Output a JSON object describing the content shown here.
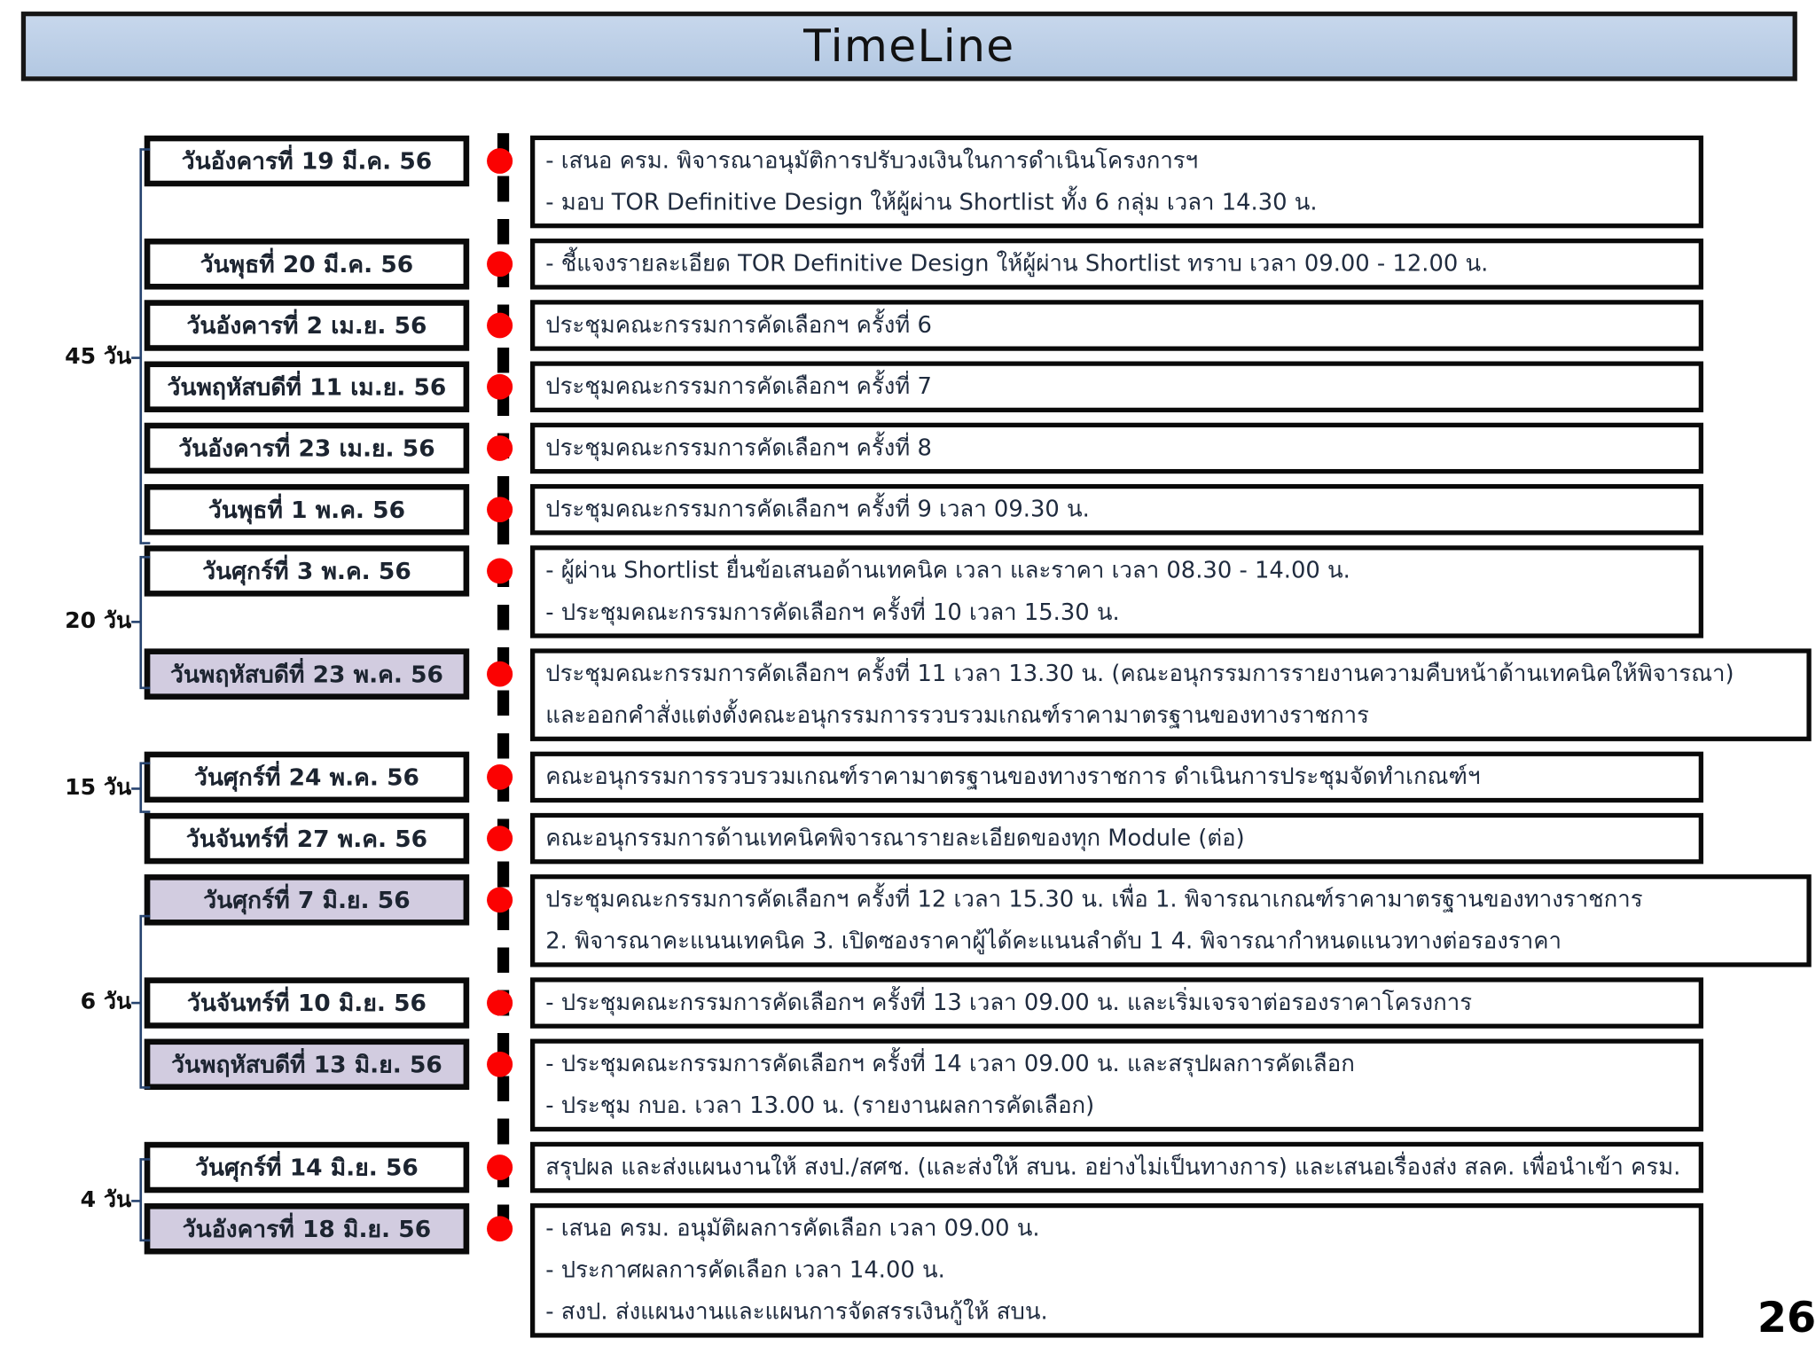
{
  "title": "TimeLine",
  "page_number": "26",
  "colors": {
    "title_bg": "#b8cce4",
    "highlight_bg": "#d2cce0",
    "dot_red": "#fb0202",
    "bracket_blue": "#26436f"
  },
  "durations": [
    {
      "label": "45 วัน"
    },
    {
      "label": "20 วัน"
    },
    {
      "label": "15 วัน"
    },
    {
      "label": "6 วัน"
    },
    {
      "label": "4 วัน"
    }
  ],
  "rows": [
    {
      "date": "วันอังคารที่ 19 มี.ค. 56",
      "highlight": false,
      "wide": false,
      "lines": [
        "- เสนอ ครม. พิจารณาอนุมัติการปรับวงเงินในการดำเนินโครงการฯ",
        "- มอบ TOR Definitive Design ให้ผู้ผ่าน Shortlist ทั้ง 6 กลุ่ม เวลา 14.30 น."
      ]
    },
    {
      "date": "วันพุธที่ 20 มี.ค. 56",
      "highlight": false,
      "wide": false,
      "lines": [
        "- ชี้แจงรายละเอียด TOR Definitive Design ให้ผู้ผ่าน Shortlist ทราบ เวลา 09.00 - 12.00 น."
      ]
    },
    {
      "date": "วันอังคารที่ 2 เม.ย. 56",
      "highlight": false,
      "wide": false,
      "lines": [
        "ประชุมคณะกรรมการคัดเลือกฯ ครั้งที่ 6"
      ]
    },
    {
      "date": "วันพฤหัสบดีที่ 11 เม.ย. 56",
      "highlight": false,
      "wide": false,
      "lines": [
        "ประชุมคณะกรรมการคัดเลือกฯ ครั้งที่ 7"
      ]
    },
    {
      "date": "วันอังคารที่ 23 เม.ย. 56",
      "highlight": false,
      "wide": false,
      "lines": [
        "ประชุมคณะกรรมการคัดเลือกฯ ครั้งที่ 8"
      ]
    },
    {
      "date": "วันพุธที่ 1 พ.ค. 56",
      "highlight": false,
      "wide": false,
      "lines": [
        "ประชุมคณะกรรมการคัดเลือกฯ ครั้งที่ 9 เวลา 09.30 น."
      ]
    },
    {
      "date": "วันศุกร์ที่ 3 พ.ค. 56",
      "highlight": false,
      "wide": false,
      "lines": [
        "- ผู้ผ่าน Shortlist ยื่นข้อเสนอด้านเทคนิค เวลา และราคา เวลา 08.30 - 14.00 น.",
        "- ประชุมคณะกรรมการคัดเลือกฯ ครั้งที่ 10 เวลา 15.30 น."
      ]
    },
    {
      "date": "วันพฤหัสบดีที่ 23 พ.ค. 56",
      "highlight": true,
      "wide": true,
      "lines": [
        "ประชุมคณะกรรมการคัดเลือกฯ ครั้งที่ 11 เวลา 13.30 น. (คณะอนุกรรมการรายงานความคืบหน้าด้านเทคนิคให้พิจารณา)",
        "และออกคำสั่งแต่งตั้งคณะอนุกรรมการรวบรวมเกณฑ์ราคามาตรฐานของทางราชการ"
      ]
    },
    {
      "date": "วันศุกร์ที่ 24 พ.ค. 56",
      "highlight": false,
      "wide": false,
      "lines": [
        "คณะอนุกรรมการรวบรวมเกณฑ์ราคามาตรฐานของทางราชการ ดำเนินการประชุมจัดทำเกณฑ์ฯ"
      ]
    },
    {
      "date": "วันจันทร์ที่ 27 พ.ค. 56",
      "highlight": false,
      "wide": false,
      "lines": [
        "คณะอนุกรรมการด้านเทคนิคพิจารณารายละเอียดของทุก Module (ต่อ)"
      ]
    },
    {
      "date": "วันศุกร์ที่ 7 มิ.ย. 56",
      "highlight": true,
      "wide": true,
      "lines": [
        "ประชุมคณะกรรมการคัดเลือกฯ ครั้งที่ 12 เวลา 15.30 น. เพื่อ 1. พิจารณาเกณฑ์ราคามาตรฐานของทางราชการ",
        "2. พิจารณาคะแนนเทคนิค  3. เปิดซองราคาผู้ได้คะแนนลำดับ 1  4. พิจารณากำหนดแนวทางต่อรองราคา"
      ]
    },
    {
      "date": "วันจันทร์ที่ 10 มิ.ย. 56",
      "highlight": false,
      "wide": false,
      "lines": [
        "- ประชุมคณะกรรมการคัดเลือกฯ ครั้งที่ 13 เวลา 09.00 น. และเริ่มเจรจาต่อรองราคาโครงการ"
      ]
    },
    {
      "date": "วันพฤหัสบดีที่ 13 มิ.ย. 56",
      "highlight": true,
      "wide": false,
      "lines": [
        "- ประชุมคณะกรรมการคัดเลือกฯ ครั้งที่ 14 เวลา 09.00 น. และสรุปผลการคัดเลือก",
        "- ประชุม กบอ. เวลา 13.00 น. (รายงานผลการคัดเลือก)"
      ]
    },
    {
      "date": "วันศุกร์ที่ 14 มิ.ย. 56",
      "highlight": false,
      "wide": false,
      "lines": [
        "สรุปผล และส่งแผนงานให้ สงป./สศช. (และส่งให้ สบน. อย่างไม่เป็นทางการ) และเสนอเรื่องส่ง สลค. เพื่อนำเข้า ครม."
      ]
    },
    {
      "date": "วันอังคารที่ 18 มิ.ย. 56",
      "highlight": true,
      "wide": false,
      "lines": [
        "- เสนอ ครม. อนุมัติผลการคัดเลือก เวลา 09.00 น.",
        "- ประกาศผลการคัดเลือก เวลา 14.00 น.",
        "- สงป. ส่งแผนงานและแผนการจัดสรรเงินกู้ให้ สบน."
      ]
    }
  ]
}
